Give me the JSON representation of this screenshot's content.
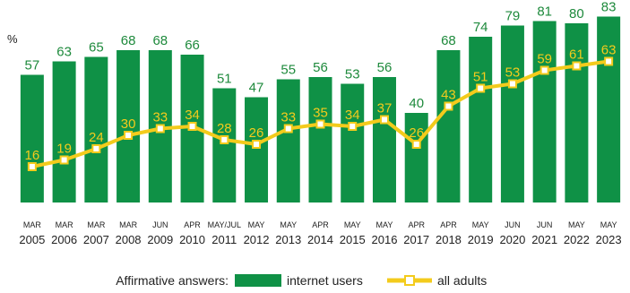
{
  "chart_data": {
    "type": "bar",
    "unit_label": "%",
    "categories": [
      {
        "month": "MAR",
        "year": "2005"
      },
      {
        "month": "MAR",
        "year": "2006"
      },
      {
        "month": "MAR",
        "year": "2007"
      },
      {
        "month": "MAR",
        "year": "2008"
      },
      {
        "month": "JUN",
        "year": "2009"
      },
      {
        "month": "APR",
        "year": "2010"
      },
      {
        "month": "MAY/JUL",
        "year": "2011"
      },
      {
        "month": "MAY",
        "year": "2012"
      },
      {
        "month": "MAY",
        "year": "2013"
      },
      {
        "month": "APR",
        "year": "2014"
      },
      {
        "month": "MAY",
        "year": "2015"
      },
      {
        "month": "MAY",
        "year": "2016"
      },
      {
        "month": "APR",
        "year": "2017"
      },
      {
        "month": "APR",
        "year": "2018"
      },
      {
        "month": "MAY",
        "year": "2019"
      },
      {
        "month": "JUN",
        "year": "2020"
      },
      {
        "month": "JUN",
        "year": "2021"
      },
      {
        "month": "MAY",
        "year": "2022"
      },
      {
        "month": "MAY",
        "year": "2023"
      }
    ],
    "series": [
      {
        "name": "internet users",
        "kind": "bar",
        "color": "#0f9146",
        "values": [
          57,
          63,
          65,
          68,
          68,
          66,
          51,
          47,
          55,
          56,
          53,
          56,
          40,
          68,
          74,
          79,
          81,
          80,
          83
        ]
      },
      {
        "name": "all adults",
        "kind": "line",
        "color": "#f3cb1c",
        "values": [
          16,
          19,
          24,
          30,
          33,
          34,
          28,
          26,
          33,
          35,
          34,
          37,
          26,
          43,
          51,
          53,
          59,
          61,
          63
        ]
      }
    ],
    "legend": {
      "prefix": "Affirmative answers:",
      "placement": "bottom"
    }
  }
}
